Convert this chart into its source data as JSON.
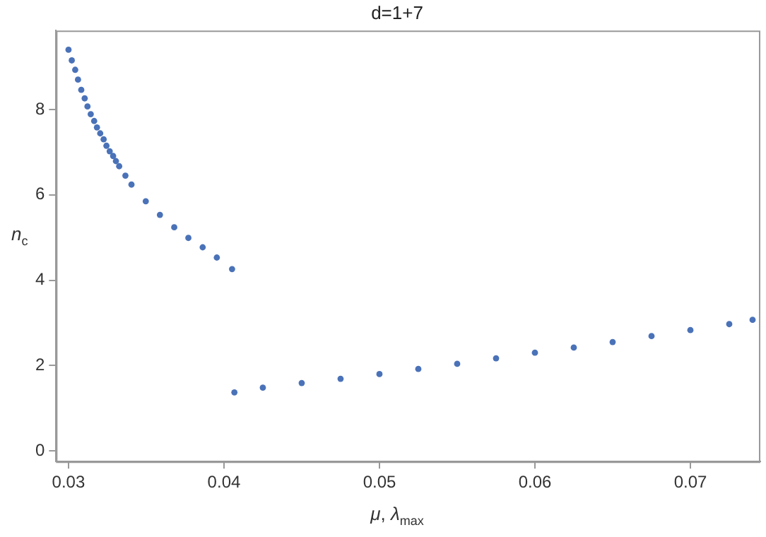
{
  "chart_data": {
    "type": "scatter",
    "title": "d=1+7",
    "xlabel": "μ, λ$_{max}$",
    "ylabel": "n$_{c}$",
    "marker": "circle",
    "grid": false,
    "xlim": [
      0.0292,
      0.0745
    ],
    "ylim": [
      -0.25,
      9.85
    ],
    "xticks": [
      0.03,
      0.04,
      0.05,
      0.06,
      0.07
    ],
    "yticks": [
      0,
      2,
      4,
      6,
      8
    ],
    "series": [
      {
        "color": "#4a72b8",
        "x": [
          0.03,
          0.03021,
          0.03043,
          0.03061,
          0.03082,
          0.03104,
          0.03122,
          0.03143,
          0.03165,
          0.03183,
          0.03204,
          0.03226,
          0.03244,
          0.03265,
          0.03287,
          0.03305,
          0.03326,
          0.03366,
          0.03405,
          0.03497,
          0.03588,
          0.0368,
          0.03771,
          0.03863,
          0.03954,
          0.04052
        ],
        "values": [
          9.4,
          9.15,
          8.93,
          8.7,
          8.46,
          8.26,
          8.07,
          7.89,
          7.73,
          7.58,
          7.44,
          7.3,
          7.15,
          7.02,
          6.91,
          6.79,
          6.67,
          6.45,
          6.24,
          5.85,
          5.53,
          5.24,
          4.99,
          4.77,
          4.53,
          4.26
        ]
      },
      {
        "color": "#4a72b8",
        "x": [
          0.04067,
          0.0425,
          0.045,
          0.0475,
          0.05,
          0.0525,
          0.055,
          0.0575,
          0.06,
          0.0625,
          0.065,
          0.0675,
          0.07,
          0.0725,
          0.074
        ],
        "values": [
          1.37,
          1.48,
          1.59,
          1.69,
          1.8,
          1.92,
          2.04,
          2.17,
          2.3,
          2.42,
          2.55,
          2.69,
          2.83,
          2.97,
          3.07
        ]
      }
    ]
  }
}
